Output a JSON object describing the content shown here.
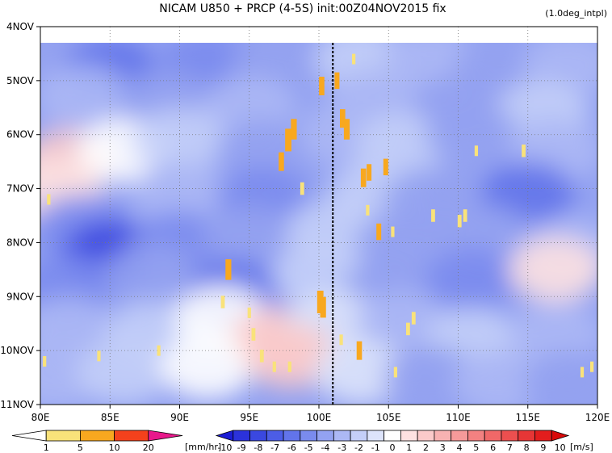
{
  "chart_data": {
    "type": "heatmap",
    "title": "NICAM  U850 + PRCP (4-5S) init:00Z04NOV2015 fix",
    "note": "(1.0deg_intpl)",
    "x_ticks": [
      "80E",
      "85E",
      "90E",
      "95E",
      "100E",
      "105E",
      "110E",
      "115E",
      "120E"
    ],
    "x_values": [
      80,
      85,
      90,
      95,
      100,
      105,
      110,
      115,
      120
    ],
    "y_ticks": [
      "4NOV",
      "5NOV",
      "6NOV",
      "7NOV",
      "8NOV",
      "9NOV",
      "10NOV",
      "11NOV"
    ],
    "y_values": [
      4,
      5,
      6,
      7,
      8,
      9,
      10,
      11
    ],
    "xlim": [
      80,
      120
    ],
    "ylim_days": [
      4,
      11
    ],
    "data_start_day": 4.3,
    "grid": true,
    "grid_style": "dotted",
    "reference_line": {
      "lon": 101,
      "style": "dashed",
      "color": "#000000"
    },
    "precip_colorbar": {
      "unit": "[mm/hr]",
      "labels": [
        "1",
        "5",
        "10",
        "20"
      ],
      "colors": [
        "#ffffff",
        "#f9e27a",
        "#f8a81f",
        "#f4411c",
        "#e8188b"
      ]
    },
    "wind_colorbar": {
      "unit": "[m/s]",
      "labels": [
        "-10",
        "-9",
        "-8",
        "-7",
        "-6",
        "-5",
        "-4",
        "-3",
        "-2",
        "-1",
        "0",
        "1",
        "2",
        "3",
        "4",
        "5",
        "6",
        "7",
        "8",
        "9",
        "10"
      ],
      "colors": [
        "#1c1dd4",
        "#2b32db",
        "#3a48e0",
        "#4c5de6",
        "#6274ea",
        "#7a8bee",
        "#93a2f1",
        "#acb8f5",
        "#c4cff8",
        "#dde4fb",
        "#ffffff",
        "#fde1e1",
        "#fbcaca",
        "#f8b2b2",
        "#f69a9a",
        "#f38181",
        "#f06868",
        "#ec4f4f",
        "#e73636",
        "#e21d1d",
        "#d90a0a"
      ]
    },
    "u850_field": [
      {
        "lon": 81,
        "day": 4.6,
        "u": -4
      },
      {
        "lon": 85,
        "day": 4.8,
        "u": -6
      },
      {
        "lon": 92,
        "day": 4.7,
        "u": -5
      },
      {
        "lon": 97,
        "day": 4.7,
        "u": -4
      },
      {
        "lon": 103,
        "day": 4.6,
        "u": -2
      },
      {
        "lon": 108,
        "day": 4.6,
        "u": -3
      },
      {
        "lon": 113,
        "day": 4.8,
        "u": -4
      },
      {
        "lon": 118,
        "day": 4.7,
        "u": -3
      },
      {
        "lon": 83,
        "day": 5.3,
        "u": -3
      },
      {
        "lon": 89,
        "day": 5.4,
        "u": -4
      },
      {
        "lon": 95,
        "day": 5.5,
        "u": -3
      },
      {
        "lon": 104,
        "day": 5.4,
        "u": -3
      },
      {
        "lon": 110,
        "day": 5.5,
        "u": -4
      },
      {
        "lon": 116,
        "day": 5.6,
        "u": -2
      },
      {
        "lon": 82,
        "day": 6.5,
        "u": 2
      },
      {
        "lon": 86,
        "day": 6.3,
        "u": 0
      },
      {
        "lon": 90,
        "day": 6.1,
        "u": -2
      },
      {
        "lon": 96,
        "day": 6.3,
        "u": -4
      },
      {
        "lon": 102,
        "day": 6.0,
        "u": -3
      },
      {
        "lon": 106,
        "day": 6.2,
        "u": -2
      },
      {
        "lon": 111,
        "day": 6.0,
        "u": -4
      },
      {
        "lon": 117,
        "day": 6.3,
        "u": -3
      },
      {
        "lon": 81,
        "day": 7.0,
        "u": 1
      },
      {
        "lon": 90,
        "day": 7.1,
        "u": -3
      },
      {
        "lon": 96,
        "day": 7.2,
        "u": -5
      },
      {
        "lon": 104,
        "day": 7.1,
        "u": -2
      },
      {
        "lon": 108,
        "day": 7.2,
        "u": -4
      },
      {
        "lon": 115,
        "day": 7.1,
        "u": -6
      },
      {
        "lon": 83,
        "day": 7.7,
        "u": -5
      },
      {
        "lon": 85,
        "day": 8.2,
        "u": -8
      },
      {
        "lon": 90,
        "day": 8.0,
        "u": -5
      },
      {
        "lon": 95,
        "day": 7.9,
        "u": -4
      },
      {
        "lon": 101,
        "day": 7.8,
        "u": -2
      },
      {
        "lon": 106,
        "day": 8.0,
        "u": -4
      },
      {
        "lon": 112,
        "day": 7.9,
        "u": -4
      },
      {
        "lon": 118,
        "day": 8.1,
        "u": -3
      },
      {
        "lon": 82,
        "day": 8.8,
        "u": -5
      },
      {
        "lon": 88,
        "day": 8.6,
        "u": -4
      },
      {
        "lon": 94,
        "day": 8.9,
        "u": -6
      },
      {
        "lon": 100,
        "day": 8.6,
        "u": -2
      },
      {
        "lon": 105,
        "day": 8.9,
        "u": -4
      },
      {
        "lon": 111,
        "day": 8.7,
        "u": -5
      },
      {
        "lon": 117,
        "day": 8.5,
        "u": 1
      },
      {
        "lon": 82,
        "day": 9.6,
        "u": -3
      },
      {
        "lon": 88,
        "day": 9.7,
        "u": -2
      },
      {
        "lon": 93,
        "day": 9.4,
        "u": 0
      },
      {
        "lon": 97,
        "day": 9.8,
        "u": 2
      },
      {
        "lon": 101,
        "day": 9.5,
        "u": -1
      },
      {
        "lon": 106,
        "day": 9.5,
        "u": -3
      },
      {
        "lon": 111,
        "day": 9.8,
        "u": -2
      },
      {
        "lon": 117,
        "day": 9.7,
        "u": -3
      },
      {
        "lon": 81,
        "day": 10.5,
        "u": -3
      },
      {
        "lon": 86,
        "day": 10.4,
        "u": -2
      },
      {
        "lon": 92,
        "day": 10.3,
        "u": 0
      },
      {
        "lon": 98,
        "day": 10.1,
        "u": 2
      },
      {
        "lon": 103,
        "day": 10.4,
        "u": -1
      },
      {
        "lon": 108,
        "day": 10.5,
        "u": -4
      },
      {
        "lon": 113,
        "day": 10.6,
        "u": -3
      },
      {
        "lon": 118,
        "day": 10.6,
        "u": -4
      }
    ],
    "precip_cells": [
      {
        "lon": 80.6,
        "day": 7.2,
        "p": 2
      },
      {
        "lon": 80.3,
        "day": 10.2,
        "p": 2
      },
      {
        "lon": 84.2,
        "day": 10.1,
        "p": 2
      },
      {
        "lon": 88.5,
        "day": 10.0,
        "p": 2
      },
      {
        "lon": 93.5,
        "day": 8.5,
        "p": 7
      },
      {
        "lon": 93.1,
        "day": 9.1,
        "p": 3
      },
      {
        "lon": 95.0,
        "day": 9.3,
        "p": 2
      },
      {
        "lon": 95.3,
        "day": 9.7,
        "p": 3
      },
      {
        "lon": 95.9,
        "day": 10.1,
        "p": 3
      },
      {
        "lon": 96.8,
        "day": 10.3,
        "p": 2
      },
      {
        "lon": 97.3,
        "day": 6.5,
        "p": 6
      },
      {
        "lon": 97.8,
        "day": 6.1,
        "p": 8
      },
      {
        "lon": 98.2,
        "day": 5.9,
        "p": 7
      },
      {
        "lon": 98.8,
        "day": 7.0,
        "p": 3
      },
      {
        "lon": 97.9,
        "day": 10.3,
        "p": 2
      },
      {
        "lon": 100.2,
        "day": 5.1,
        "p": 6
      },
      {
        "lon": 100.1,
        "day": 9.1,
        "p": 8
      },
      {
        "lon": 100.3,
        "day": 9.2,
        "p": 7
      },
      {
        "lon": 101.3,
        "day": 5.0,
        "p": 5
      },
      {
        "lon": 101.7,
        "day": 5.7,
        "p": 6
      },
      {
        "lon": 102.0,
        "day": 5.9,
        "p": 7
      },
      {
        "lon": 102.5,
        "day": 4.6,
        "p": 2
      },
      {
        "lon": 102.9,
        "day": 10.0,
        "p": 6
      },
      {
        "lon": 103.2,
        "day": 6.8,
        "p": 6
      },
      {
        "lon": 103.6,
        "day": 6.7,
        "p": 5
      },
      {
        "lon": 103.5,
        "day": 7.4,
        "p": 2
      },
      {
        "lon": 104.8,
        "day": 6.6,
        "p": 5
      },
      {
        "lon": 104.3,
        "day": 7.8,
        "p": 5
      },
      {
        "lon": 105.3,
        "day": 7.8,
        "p": 2
      },
      {
        "lon": 105.5,
        "day": 10.4,
        "p": 2
      },
      {
        "lon": 106.4,
        "day": 9.6,
        "p": 3
      },
      {
        "lon": 106.8,
        "day": 9.4,
        "p": 3
      },
      {
        "lon": 108.2,
        "day": 7.5,
        "p": 3
      },
      {
        "lon": 110.1,
        "day": 7.6,
        "p": 3
      },
      {
        "lon": 110.5,
        "day": 7.5,
        "p": 3
      },
      {
        "lon": 111.3,
        "day": 6.3,
        "p": 2
      },
      {
        "lon": 114.7,
        "day": 6.3,
        "p": 3
      },
      {
        "lon": 118.9,
        "day": 10.4,
        "p": 2
      },
      {
        "lon": 119.6,
        "day": 10.3,
        "p": 2
      },
      {
        "lon": 101.6,
        "day": 9.8,
        "p": 2
      }
    ]
  }
}
